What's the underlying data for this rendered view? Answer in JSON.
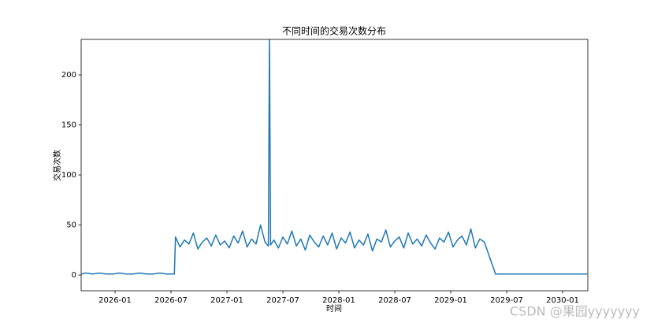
{
  "chart_data": {
    "type": "line",
    "title": "不同时间的交易次数分布",
    "x_label": "时间",
    "y_label": "交易次数",
    "x": [
      2025.7,
      2025.74,
      2025.8,
      2025.86,
      2025.92,
      2025.98,
      2026.04,
      2026.1,
      2026.16,
      2026.22,
      2026.28,
      2026.34,
      2026.4,
      2026.46,
      2026.5,
      2026.53,
      2026.54,
      2026.58,
      2026.62,
      2026.66,
      2026.7,
      2026.74,
      2026.78,
      2026.82,
      2026.86,
      2026.9,
      2026.94,
      2026.98,
      2027.02,
      2027.06,
      2027.1,
      2027.14,
      2027.18,
      2027.22,
      2027.26,
      2027.3,
      2027.34,
      2027.37,
      2027.38,
      2027.39,
      2027.42,
      2027.46,
      2027.5,
      2027.54,
      2027.58,
      2027.62,
      2027.66,
      2027.7,
      2027.74,
      2027.78,
      2027.82,
      2027.86,
      2027.9,
      2027.94,
      2027.98,
      2028.02,
      2028.06,
      2028.1,
      2028.14,
      2028.18,
      2028.22,
      2028.26,
      2028.3,
      2028.34,
      2028.38,
      2028.42,
      2028.46,
      2028.5,
      2028.54,
      2028.58,
      2028.62,
      2028.66,
      2028.7,
      2028.74,
      2028.78,
      2028.82,
      2028.86,
      2028.9,
      2028.94,
      2028.98,
      2029.02,
      2029.06,
      2029.1,
      2029.14,
      2029.18,
      2029.22,
      2029.26,
      2029.3,
      2029.4,
      2030.22
    ],
    "series": [
      {
        "name": "交易次数",
        "color": "#1f77b4",
        "values": [
          1,
          2,
          1,
          2,
          1,
          1,
          2,
          1,
          1,
          2,
          1,
          1,
          2,
          1,
          1,
          1,
          38,
          28,
          35,
          31,
          42,
          26,
          33,
          37,
          29,
          40,
          30,
          34,
          27,
          39,
          32,
          44,
          28,
          36,
          31,
          50,
          33,
          29,
          240,
          30,
          35,
          27,
          38,
          31,
          44,
          29,
          36,
          25,
          40,
          33,
          28,
          39,
          30,
          42,
          26,
          37,
          32,
          43,
          27,
          35,
          30,
          41,
          24,
          36,
          33,
          45,
          28,
          34,
          38,
          27,
          42,
          31,
          36,
          29,
          40,
          32,
          26,
          37,
          33,
          43,
          28,
          35,
          39,
          30,
          46,
          27,
          36,
          33,
          1,
          1
        ]
      }
    ],
    "xlim": [
      2025.697,
      2030.225
    ],
    "xticks": [
      {
        "value": 2026.0,
        "label": "2026-01"
      },
      {
        "value": 2026.5,
        "label": "2026-07"
      },
      {
        "value": 2027.0,
        "label": "2027-01"
      },
      {
        "value": 2027.5,
        "label": "2027-07"
      },
      {
        "value": 2028.0,
        "label": "2028-01"
      },
      {
        "value": 2028.5,
        "label": "2028-07"
      },
      {
        "value": 2029.0,
        "label": "2029-01"
      },
      {
        "value": 2029.5,
        "label": "2029-07"
      },
      {
        "value": 2030.0,
        "label": "2030-01"
      }
    ],
    "ylim": [
      -15.7,
      235.4
    ],
    "yticks": [
      0,
      50,
      100,
      150,
      200
    ],
    "grid": false,
    "watermark": "CSDN @果园yyyyyyy"
  }
}
